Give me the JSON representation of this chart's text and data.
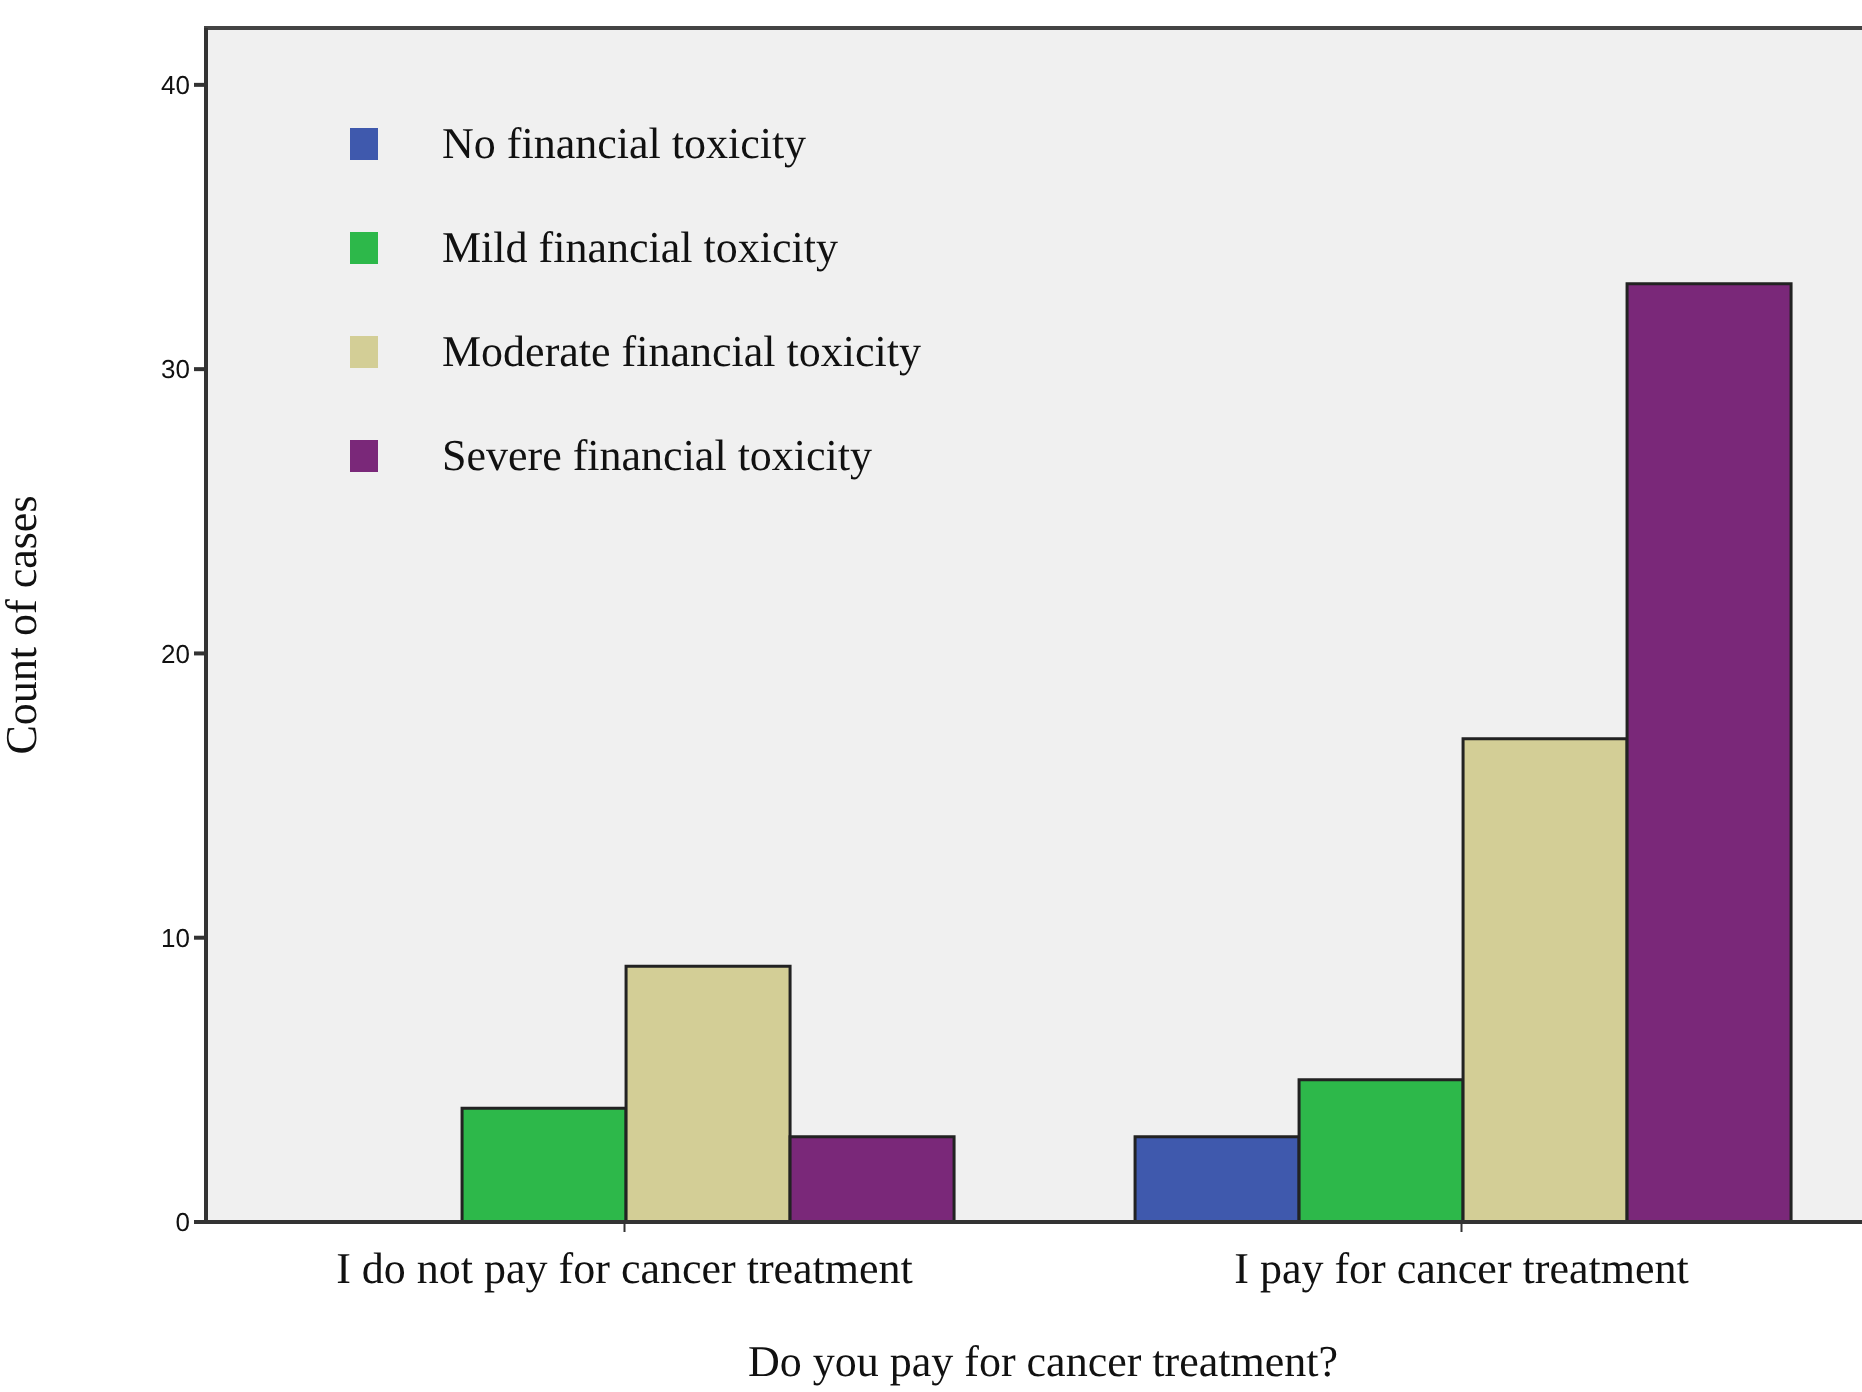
{
  "chart_data": {
    "type": "bar",
    "xlabel": "Do you pay for cancer treatment?",
    "ylabel": "Count of cases",
    "categories": [
      "I do not pay for cancer treatment",
      "I pay for cancer treatment"
    ],
    "series": [
      {
        "name": "No financial toxicity",
        "color": "#3f59ad",
        "values": [
          null,
          3
        ]
      },
      {
        "name": "Mild financial toxicity",
        "color": "#2db84a",
        "values": [
          4,
          5
        ]
      },
      {
        "name": "Moderate financial toxicity",
        "color": "#d3ce96",
        "values": [
          9,
          17
        ]
      },
      {
        "name": "Severe financial toxicity",
        "color": "#7a2879",
        "values": [
          3,
          33
        ]
      }
    ],
    "ylim": [
      0,
      42
    ],
    "yticks": [
      0,
      10,
      20,
      30,
      40
    ],
    "legend": "top left"
  }
}
